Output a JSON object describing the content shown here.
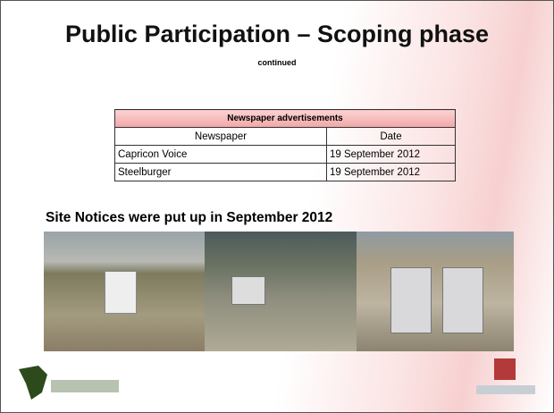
{
  "slide": {
    "title": "Public Participation – Scoping phase",
    "subtitle": "continued",
    "table": {
      "caption": "Newspaper advertisements",
      "columns": [
        "Newspaper",
        "Date"
      ],
      "rows": [
        [
          "Capricon Voice",
          "19 September 2012"
        ],
        [
          "Steelburger",
          "19 September 2012"
        ]
      ]
    },
    "photo_caption": "Site Notices were put up in September  2012"
  }
}
